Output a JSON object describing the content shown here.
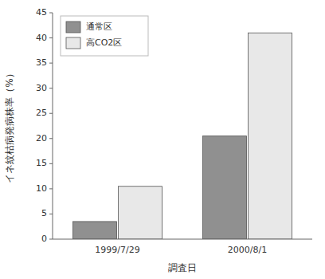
{
  "chart_data": {
    "type": "bar",
    "x_label": "調査日",
    "y_label": "イネ紋枯病発病株率（%）",
    "categories": [
      "1999/7/29",
      "2000/8/1"
    ],
    "series": [
      {
        "name": "通常区",
        "color": "#909090",
        "values": [
          3.5,
          20.5
        ]
      },
      {
        "name": "高CO2区",
        "color": "#e8e8e8",
        "values": [
          10.5,
          41.0
        ]
      }
    ],
    "ylim": [
      0,
      45
    ],
    "yticks": [
      0,
      5,
      10,
      15,
      20,
      25,
      30,
      35,
      40,
      45
    ],
    "grid": false,
    "legend": "upper-left"
  }
}
